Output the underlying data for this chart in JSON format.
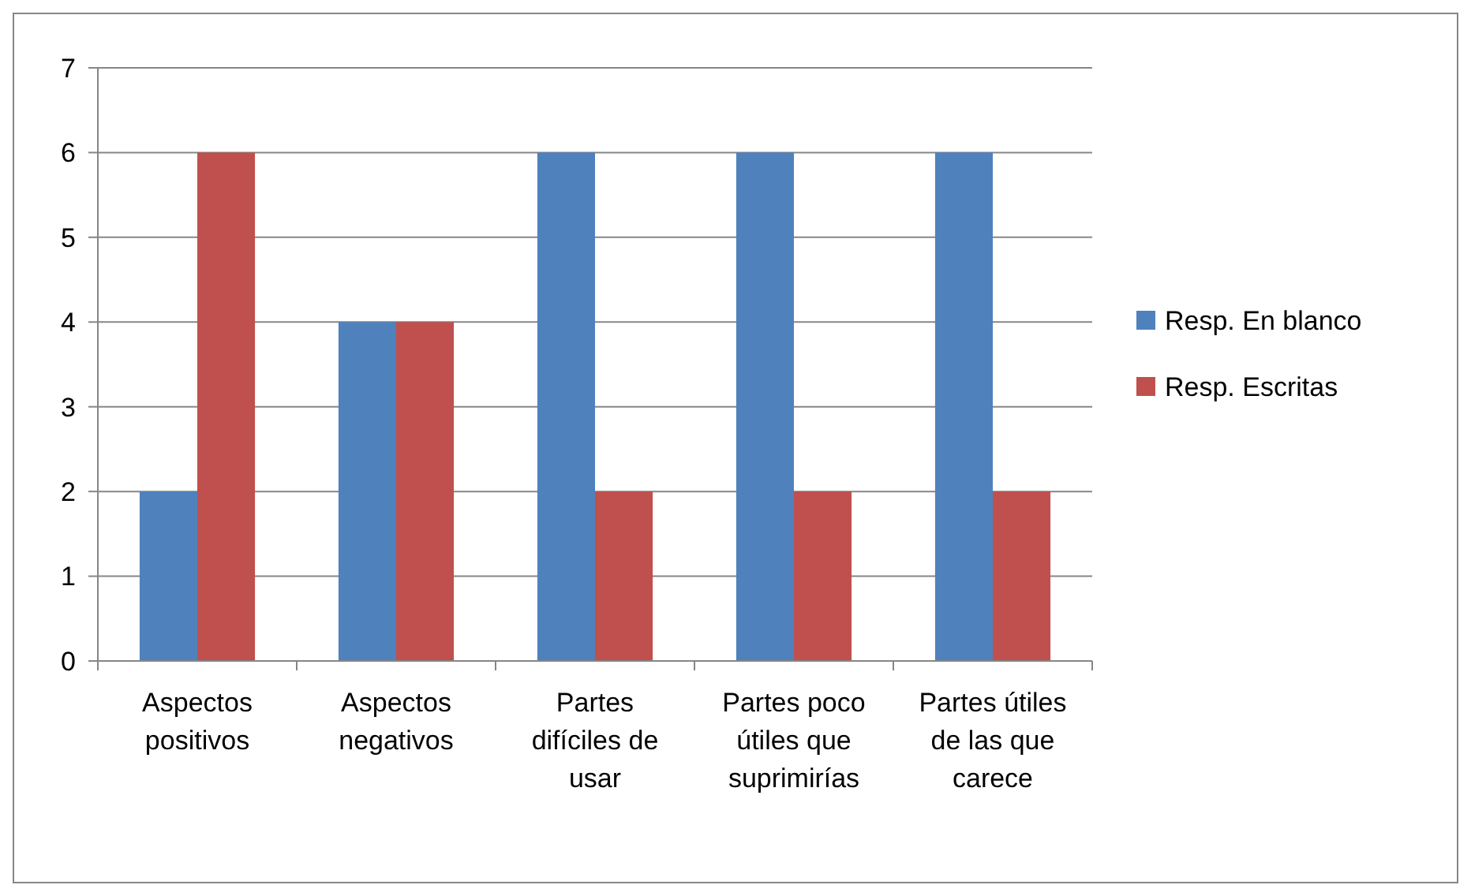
{
  "chart_data": {
    "type": "bar",
    "categories": [
      "Aspectos positivos",
      "Aspectos negativos",
      "Partes difíciles de usar",
      "Partes poco útiles que suprimirías",
      "Partes útiles de las que carece"
    ],
    "series": [
      {
        "name": "Resp. En blanco",
        "color": "#4f81bd",
        "values": [
          2,
          4,
          6,
          6,
          6
        ]
      },
      {
        "name": "Resp. Escritas",
        "color": "#c0504d",
        "values": [
          6,
          4,
          2,
          2,
          2
        ]
      }
    ],
    "ylim": [
      0,
      7
    ],
    "yticks": [
      0,
      1,
      2,
      3,
      4,
      5,
      6,
      7
    ],
    "grid": "y",
    "legend": "right"
  }
}
